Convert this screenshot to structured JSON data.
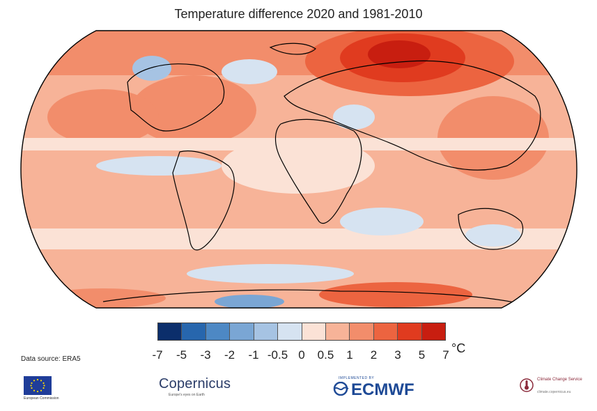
{
  "title": "Temperature difference 2020 and 1981-2010",
  "colorbar": {
    "unit": "°C",
    "ticks": [
      "-7",
      "-5",
      "-3",
      "-2",
      "-1",
      "-0.5",
      "0",
      "0.5",
      "1",
      "2",
      "3",
      "5",
      "7"
    ],
    "colors": [
      "#0b2e6b",
      "#2766ad",
      "#4d88c4",
      "#7aa6d4",
      "#a6c3e3",
      "#d6e3f1",
      "#fbe2d6",
      "#f7b398",
      "#f28d6b",
      "#ec6440",
      "#e03b1f",
      "#c81e10"
    ]
  },
  "source_label": "Data source: ERA5",
  "logos": {
    "eu": {
      "text": "European Commission"
    },
    "copernicus": {
      "name": "Copernicus",
      "tagline": "Europe's eyes on Earth"
    },
    "ecmwf": {
      "top": "IMPLEMENTED BY",
      "name": "ECMWF"
    },
    "c3s": {
      "name": "Climate Change Service",
      "url": "climate.copernicus.eu"
    }
  }
}
